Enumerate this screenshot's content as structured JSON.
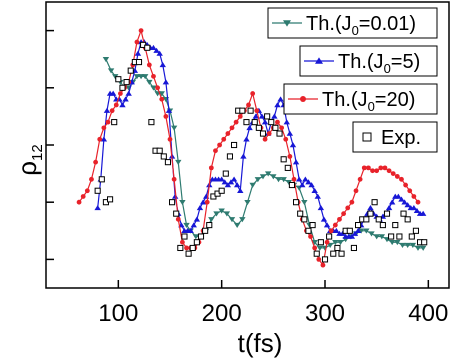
{
  "chart_data": {
    "type": "line",
    "xlabel": "t(fs)",
    "ylabel": "ρ",
    "ylabel_sub": "12",
    "xlim": [
      30,
      420
    ],
    "ylim": [
      0,
      1
    ],
    "x_ticks": [
      100,
      200,
      300,
      400
    ],
    "x_tick_labels": [
      "100",
      "200",
      "300",
      "400"
    ],
    "y_ticks": [
      0.1,
      0.3,
      0.5,
      0.7,
      0.9
    ],
    "y_tick_labels_shown": false,
    "legend_position": "top-right",
    "series": [
      {
        "name_main": "Th.(J",
        "name_sub": "0",
        "name_tail": "=0.01)",
        "color": "#2e7b70",
        "marker": "triangle-down",
        "x": [
          88,
          93,
          97,
          102,
          106,
          110,
          114,
          118,
          122,
          126,
          130,
          134,
          138,
          142,
          146,
          150,
          154,
          158,
          162,
          166,
          170,
          175,
          180,
          185,
          190,
          195,
          200,
          205,
          210,
          215,
          220,
          225,
          230,
          235,
          240,
          245,
          250,
          255,
          260,
          265,
          270,
          275,
          280,
          285,
          290,
          295,
          300,
          305,
          310,
          315,
          320,
          325,
          330,
          335,
          340,
          345,
          350,
          355,
          360,
          365,
          370,
          375,
          380,
          385,
          390,
          395
        ],
        "y": [
          0.8,
          0.76,
          0.74,
          0.72,
          0.7,
          0.7,
          0.72,
          0.74,
          0.74,
          0.74,
          0.72,
          0.7,
          0.68,
          0.68,
          0.66,
          0.62,
          0.56,
          0.44,
          0.3,
          0.22,
          0.2,
          0.18,
          0.18,
          0.2,
          0.24,
          0.26,
          0.27,
          0.26,
          0.24,
          0.22,
          0.24,
          0.3,
          0.36,
          0.38,
          0.39,
          0.4,
          0.39,
          0.38,
          0.38,
          0.37,
          0.36,
          0.35,
          0.3,
          0.22,
          0.16,
          0.14,
          0.14,
          0.15,
          0.16,
          0.16,
          0.17,
          0.18,
          0.19,
          0.2,
          0.2,
          0.19,
          0.18,
          0.18,
          0.17,
          0.16,
          0.16,
          0.15,
          0.15,
          0.15,
          0.14,
          0.14
        ]
      },
      {
        "name_main": "Th.(J",
        "name_sub": "0",
        "name_tail": "=5)",
        "color": "#1717d6",
        "marker": "triangle-up",
        "x": [
          80,
          83,
          86,
          89,
          92,
          95,
          98,
          101,
          104,
          107,
          110,
          113,
          116,
          119,
          122,
          125,
          128,
          131,
          134,
          137,
          140,
          143,
          146,
          149,
          152,
          155,
          158,
          161,
          164,
          167,
          170,
          173,
          176,
          179,
          182,
          185,
          188,
          191,
          194,
          197,
          200,
          203,
          206,
          209,
          212,
          215,
          218,
          221,
          224,
          227,
          230,
          233,
          236,
          239,
          242,
          245,
          248,
          251,
          254,
          257,
          260,
          263,
          266,
          269,
          272,
          275,
          278,
          281,
          284,
          287,
          290,
          293,
          296,
          299,
          302,
          305,
          308,
          311,
          314,
          317,
          320,
          323,
          326,
          329,
          332,
          335,
          338,
          341,
          344,
          347,
          350,
          353,
          356,
          359,
          362,
          365,
          368,
          371,
          374,
          377,
          380,
          383,
          386,
          389,
          392,
          395
        ],
        "y": [
          0.28,
          0.38,
          0.52,
          0.62,
          0.68,
          0.68,
          0.66,
          0.66,
          0.64,
          0.66,
          0.68,
          0.72,
          0.76,
          0.82,
          0.86,
          0.86,
          0.85,
          0.84,
          0.84,
          0.83,
          0.82,
          0.78,
          0.72,
          0.62,
          0.46,
          0.32,
          0.26,
          0.22,
          0.2,
          0.2,
          0.2,
          0.22,
          0.24,
          0.28,
          0.3,
          0.32,
          0.36,
          0.38,
          0.38,
          0.38,
          0.38,
          0.37,
          0.36,
          0.37,
          0.38,
          0.36,
          0.34,
          0.46,
          0.52,
          0.56,
          0.58,
          0.6,
          0.62,
          0.6,
          0.58,
          0.54,
          0.58,
          0.6,
          0.64,
          0.66,
          0.64,
          0.58,
          0.54,
          0.5,
          0.44,
          0.38,
          0.36,
          0.38,
          0.37,
          0.36,
          0.34,
          0.32,
          0.28,
          0.24,
          0.22,
          0.2,
          0.2,
          0.2,
          0.19,
          0.19,
          0.18,
          0.18,
          0.18,
          0.19,
          0.2,
          0.22,
          0.24,
          0.26,
          0.28,
          0.26,
          0.25,
          0.24,
          0.25,
          0.26,
          0.28,
          0.3,
          0.32,
          0.32,
          0.31,
          0.3,
          0.29,
          0.28,
          0.28,
          0.27,
          0.26,
          0.26
        ]
      },
      {
        "name_main": "Th.(J",
        "name_sub": "0",
        "name_tail": "=20)",
        "color": "#e8222a",
        "marker": "circle",
        "x": [
          62,
          66,
          70,
          74,
          78,
          82,
          86,
          90,
          94,
          98,
          102,
          106,
          110,
          114,
          118,
          122,
          126,
          130,
          134,
          138,
          142,
          146,
          150,
          154,
          158,
          162,
          166,
          170,
          174,
          178,
          182,
          186,
          190,
          194,
          198,
          202,
          206,
          210,
          214,
          218,
          222,
          226,
          230,
          234,
          238,
          242,
          246,
          250,
          254,
          258,
          262,
          266,
          270,
          274,
          278,
          282,
          286,
          290,
          294,
          298,
          302,
          306,
          310,
          314,
          318,
          322,
          326,
          330,
          334,
          338,
          342,
          346,
          350,
          354,
          358,
          362,
          366,
          370,
          374,
          378,
          382,
          386,
          390
        ],
        "y": [
          0.3,
          0.32,
          0.34,
          0.38,
          0.44,
          0.52,
          0.56,
          0.58,
          0.62,
          0.64,
          0.68,
          0.7,
          0.72,
          0.78,
          0.86,
          0.9,
          0.84,
          0.78,
          0.74,
          0.7,
          0.66,
          0.6,
          0.52,
          0.38,
          0.24,
          0.16,
          0.14,
          0.14,
          0.14,
          0.16,
          0.2,
          0.3,
          0.42,
          0.48,
          0.5,
          0.52,
          0.54,
          0.56,
          0.58,
          0.6,
          0.62,
          0.64,
          0.68,
          0.62,
          0.56,
          0.52,
          0.54,
          0.56,
          0.58,
          0.56,
          0.52,
          0.46,
          0.38,
          0.3,
          0.24,
          0.2,
          0.18,
          0.14,
          0.1,
          0.08,
          0.16,
          0.2,
          0.22,
          0.24,
          0.26,
          0.28,
          0.3,
          0.34,
          0.38,
          0.42,
          0.42,
          0.41,
          0.41,
          0.42,
          0.42,
          0.41,
          0.4,
          0.39,
          0.38,
          0.36,
          0.34,
          0.32,
          0.3
        ]
      },
      {
        "name_main": "Exp.",
        "name_sub": "",
        "name_tail": "",
        "color": "#000000",
        "marker": "open-square",
        "x": [
          80,
          84,
          88,
          92,
          96,
          100,
          104,
          108,
          112,
          116,
          120,
          124,
          128,
          132,
          136,
          140,
          144,
          148,
          152,
          156,
          160,
          164,
          168,
          172,
          176,
          180,
          184,
          188,
          192,
          196,
          200,
          204,
          208,
          212,
          216,
          220,
          224,
          228,
          232,
          236,
          240,
          244,
          248,
          252,
          256,
          260,
          264,
          268,
          272,
          276,
          280,
          284,
          288,
          292,
          296,
          300,
          304,
          308,
          312,
          316,
          320,
          324,
          328,
          332,
          336,
          340,
          344,
          348,
          352,
          356,
          360,
          364,
          368,
          372,
          376,
          380,
          384,
          388,
          392,
          396
        ],
        "y": [
          0.34,
          0.38,
          0.3,
          0.31,
          0.58,
          0.73,
          0.7,
          0.72,
          0.76,
          0.79,
          0.79,
          0.85,
          0.84,
          0.58,
          0.48,
          0.48,
          0.46,
          0.44,
          0.3,
          0.26,
          0.14,
          0.18,
          0.12,
          0.14,
          0.16,
          0.18,
          0.2,
          0.22,
          0.32,
          0.33,
          0.34,
          0.4,
          0.46,
          0.5,
          0.62,
          0.62,
          0.58,
          0.62,
          0.58,
          0.56,
          0.54,
          0.6,
          0.58,
          0.56,
          0.54,
          0.45,
          0.42,
          0.36,
          0.3,
          0.26,
          0.24,
          0.2,
          0.22,
          0.12,
          0.16,
          0.1,
          0.18,
          0.12,
          0.14,
          0.12,
          0.2,
          0.2,
          0.14,
          0.22,
          0.24,
          0.24,
          0.26,
          0.3,
          0.24,
          0.22,
          0.26,
          0.18,
          0.22,
          0.18,
          0.26,
          0.24,
          0.18,
          0.2,
          0.16,
          0.16
        ]
      }
    ]
  }
}
